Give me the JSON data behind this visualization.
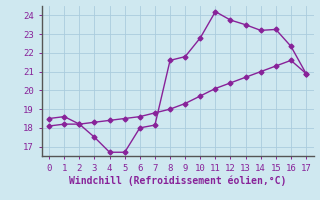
{
  "xlabel": "Windchill (Refroidissement éolien,°C)",
  "bg_color": "#cfe8f0",
  "line_color": "#882299",
  "spine_color": "#555555",
  "xlim": [
    -0.5,
    17.5
  ],
  "ylim": [
    16.5,
    24.5
  ],
  "xticks": [
    0,
    1,
    2,
    3,
    4,
    5,
    6,
    7,
    8,
    9,
    10,
    11,
    12,
    13,
    14,
    15,
    16,
    17
  ],
  "yticks": [
    17,
    18,
    19,
    20,
    21,
    22,
    23,
    24
  ],
  "series1_x": [
    0,
    1,
    2,
    3,
    4,
    5,
    6,
    7,
    8,
    9,
    10,
    11,
    12,
    13,
    14,
    15,
    16,
    17
  ],
  "series1_y": [
    18.5,
    18.6,
    18.2,
    17.5,
    16.7,
    16.7,
    18.0,
    18.15,
    21.6,
    21.8,
    22.8,
    24.2,
    23.75,
    23.5,
    23.2,
    23.25,
    22.35,
    20.9
  ],
  "series2_x": [
    0,
    1,
    2,
    3,
    4,
    5,
    6,
    7,
    8,
    9,
    10,
    11,
    12,
    13,
    14,
    15,
    16,
    17
  ],
  "series2_y": [
    18.1,
    18.2,
    18.2,
    18.3,
    18.4,
    18.5,
    18.6,
    18.8,
    19.0,
    19.3,
    19.7,
    20.1,
    20.4,
    20.7,
    21.0,
    21.3,
    21.6,
    20.9
  ],
  "grid_color": "#aaccdd",
  "marker": "D",
  "markersize": 2.5,
  "linewidth": 1.0,
  "xlabel_fontsize": 7,
  "tick_fontsize": 6.5,
  "label_color": "#882299"
}
